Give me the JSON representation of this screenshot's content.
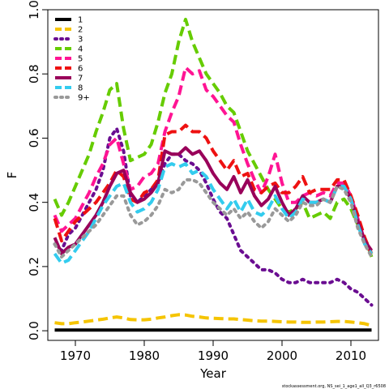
{
  "chart_data": {
    "type": "line",
    "xlabel": "Year",
    "ylabel": "F",
    "xlim": [
      1966,
      2014
    ],
    "ylim": [
      -0.03,
      1.0
    ],
    "xticks": [
      1970,
      1980,
      1990,
      2000,
      2010
    ],
    "yticks": [
      0.0,
      0.2,
      0.4,
      0.6,
      0.8,
      1.0
    ],
    "ytick_labels": [
      "0.0",
      "0.2",
      "0.4",
      "0.6",
      "0.8",
      "1.0"
    ],
    "grid": false,
    "legend": "top-left",
    "credit": "stockassessment.org, NS_sei_1_age1_all_Q3_r6508",
    "years": [
      1967,
      1968,
      1969,
      1970,
      1971,
      1972,
      1973,
      1974,
      1975,
      1976,
      1977,
      1978,
      1979,
      1980,
      1981,
      1982,
      1983,
      1984,
      1985,
      1986,
      1987,
      1988,
      1989,
      1990,
      1991,
      1992,
      1993,
      1994,
      1995,
      1996,
      1997,
      1998,
      1999,
      2000,
      2001,
      2002,
      2003,
      2004,
      2005,
      2006,
      2007,
      2008,
      2009,
      2010,
      2011,
      2012,
      2013
    ],
    "series": [
      {
        "name": "1",
        "color": "#000000",
        "dash": "solid",
        "values": [
          0.002,
          0.002,
          0.002,
          0.002,
          0.002,
          0.002,
          0.002,
          0.002,
          0.002,
          0.002,
          0.002,
          0.002,
          0.002,
          0.002,
          0.002,
          0.002,
          0.002,
          0.002,
          0.002,
          0.002,
          0.002,
          0.002,
          0.002,
          0.002,
          0.002,
          0.002,
          0.002,
          0.002,
          0.002,
          0.002,
          0.002,
          0.002,
          0.002,
          0.002,
          0.002,
          0.002,
          0.002,
          0.002,
          0.002,
          0.002,
          0.002,
          0.002,
          0.002,
          0.002,
          0.002,
          0.002,
          0.002
        ]
      },
      {
        "name": "2",
        "color": "#f5c400",
        "dash": "dashed",
        "values": [
          0.025,
          0.022,
          0.022,
          0.025,
          0.027,
          0.03,
          0.033,
          0.036,
          0.04,
          0.043,
          0.04,
          0.035,
          0.034,
          0.034,
          0.036,
          0.04,
          0.043,
          0.047,
          0.05,
          0.049,
          0.045,
          0.043,
          0.04,
          0.039,
          0.038,
          0.037,
          0.037,
          0.035,
          0.033,
          0.031,
          0.03,
          0.03,
          0.029,
          0.028,
          0.027,
          0.027,
          0.026,
          0.026,
          0.027,
          0.027,
          0.028,
          0.029,
          0.029,
          0.027,
          0.025,
          0.022,
          0.016
        ]
      },
      {
        "name": "3",
        "color": "#6a0d91",
        "dash": "dotted",
        "values": [
          0.27,
          0.25,
          0.3,
          0.32,
          0.36,
          0.4,
          0.44,
          0.5,
          0.6,
          0.63,
          0.56,
          0.42,
          0.4,
          0.42,
          0.44,
          0.46,
          0.52,
          0.55,
          0.55,
          0.53,
          0.52,
          0.5,
          0.46,
          0.41,
          0.37,
          0.35,
          0.3,
          0.25,
          0.23,
          0.21,
          0.19,
          0.19,
          0.18,
          0.16,
          0.15,
          0.15,
          0.16,
          0.15,
          0.15,
          0.15,
          0.15,
          0.16,
          0.15,
          0.13,
          0.12,
          0.1,
          0.08
        ]
      },
      {
        "name": "4",
        "color": "#66cc00",
        "dash": "dashed",
        "values": [
          0.41,
          0.36,
          0.4,
          0.45,
          0.5,
          0.55,
          0.62,
          0.68,
          0.75,
          0.77,
          0.63,
          0.53,
          0.54,
          0.55,
          0.58,
          0.65,
          0.74,
          0.8,
          0.9,
          0.97,
          0.9,
          0.85,
          0.8,
          0.77,
          0.74,
          0.7,
          0.68,
          0.62,
          0.56,
          0.52,
          0.48,
          0.44,
          0.41,
          0.38,
          0.37,
          0.38,
          0.4,
          0.35,
          0.36,
          0.37,
          0.35,
          0.4,
          0.41,
          0.38,
          0.33,
          0.29,
          0.23
        ]
      },
      {
        "name": "5",
        "color": "#ff1493",
        "dash": "dashed",
        "values": [
          0.36,
          0.31,
          0.33,
          0.35,
          0.39,
          0.43,
          0.48,
          0.52,
          0.58,
          0.6,
          0.52,
          0.44,
          0.45,
          0.48,
          0.49,
          0.52,
          0.62,
          0.68,
          0.73,
          0.82,
          0.8,
          0.81,
          0.75,
          0.73,
          0.7,
          0.67,
          0.65,
          0.58,
          0.52,
          0.47,
          0.43,
          0.48,
          0.55,
          0.46,
          0.4,
          0.4,
          0.42,
          0.43,
          0.42,
          0.43,
          0.42,
          0.46,
          0.46,
          0.42,
          0.35,
          0.28,
          0.24
        ]
      },
      {
        "name": "6",
        "color": "#ee1111",
        "dash": "dashed",
        "values": [
          0.35,
          0.28,
          0.31,
          0.34,
          0.36,
          0.38,
          0.4,
          0.43,
          0.46,
          0.5,
          0.48,
          0.41,
          0.4,
          0.43,
          0.44,
          0.47,
          0.61,
          0.62,
          0.62,
          0.64,
          0.62,
          0.62,
          0.6,
          0.56,
          0.53,
          0.5,
          0.53,
          0.48,
          0.49,
          0.44,
          0.43,
          0.45,
          0.46,
          0.43,
          0.43,
          0.45,
          0.48,
          0.43,
          0.44,
          0.44,
          0.44,
          0.47,
          0.47,
          0.42,
          0.36,
          0.29,
          0.24
        ]
      },
      {
        "name": "7",
        "color": "#99005a",
        "dash": "solid",
        "values": [
          0.29,
          0.24,
          0.26,
          0.27,
          0.3,
          0.33,
          0.36,
          0.4,
          0.45,
          0.49,
          0.5,
          0.43,
          0.4,
          0.41,
          0.43,
          0.46,
          0.56,
          0.55,
          0.55,
          0.57,
          0.55,
          0.56,
          0.53,
          0.49,
          0.46,
          0.44,
          0.48,
          0.43,
          0.47,
          0.42,
          0.39,
          0.41,
          0.45,
          0.4,
          0.36,
          0.38,
          0.42,
          0.4,
          0.4,
          0.41,
          0.4,
          0.45,
          0.45,
          0.41,
          0.34,
          0.28,
          0.25
        ]
      },
      {
        "name": "8",
        "color": "#33ccee",
        "dash": "dashed",
        "values": [
          0.24,
          0.21,
          0.22,
          0.25,
          0.28,
          0.31,
          0.35,
          0.39,
          0.42,
          0.45,
          0.46,
          0.4,
          0.37,
          0.38,
          0.4,
          0.44,
          0.51,
          0.52,
          0.51,
          0.52,
          0.49,
          0.5,
          0.48,
          0.44,
          0.41,
          0.38,
          0.41,
          0.37,
          0.41,
          0.37,
          0.36,
          0.38,
          0.42,
          0.38,
          0.35,
          0.37,
          0.41,
          0.4,
          0.4,
          0.41,
          0.4,
          0.45,
          0.45,
          0.41,
          0.33,
          0.27,
          0.24
        ]
      },
      {
        "name": "9+",
        "color": "#999999",
        "dash": "dotted",
        "values": [
          0.27,
          0.23,
          0.25,
          0.27,
          0.29,
          0.31,
          0.33,
          0.36,
          0.39,
          0.42,
          0.42,
          0.36,
          0.33,
          0.34,
          0.36,
          0.39,
          0.44,
          0.43,
          0.44,
          0.47,
          0.47,
          0.46,
          0.43,
          0.4,
          0.38,
          0.36,
          0.38,
          0.35,
          0.37,
          0.34,
          0.32,
          0.34,
          0.38,
          0.36,
          0.34,
          0.36,
          0.4,
          0.39,
          0.39,
          0.41,
          0.4,
          0.45,
          0.44,
          0.4,
          0.32,
          0.27,
          0.23
        ]
      }
    ]
  }
}
